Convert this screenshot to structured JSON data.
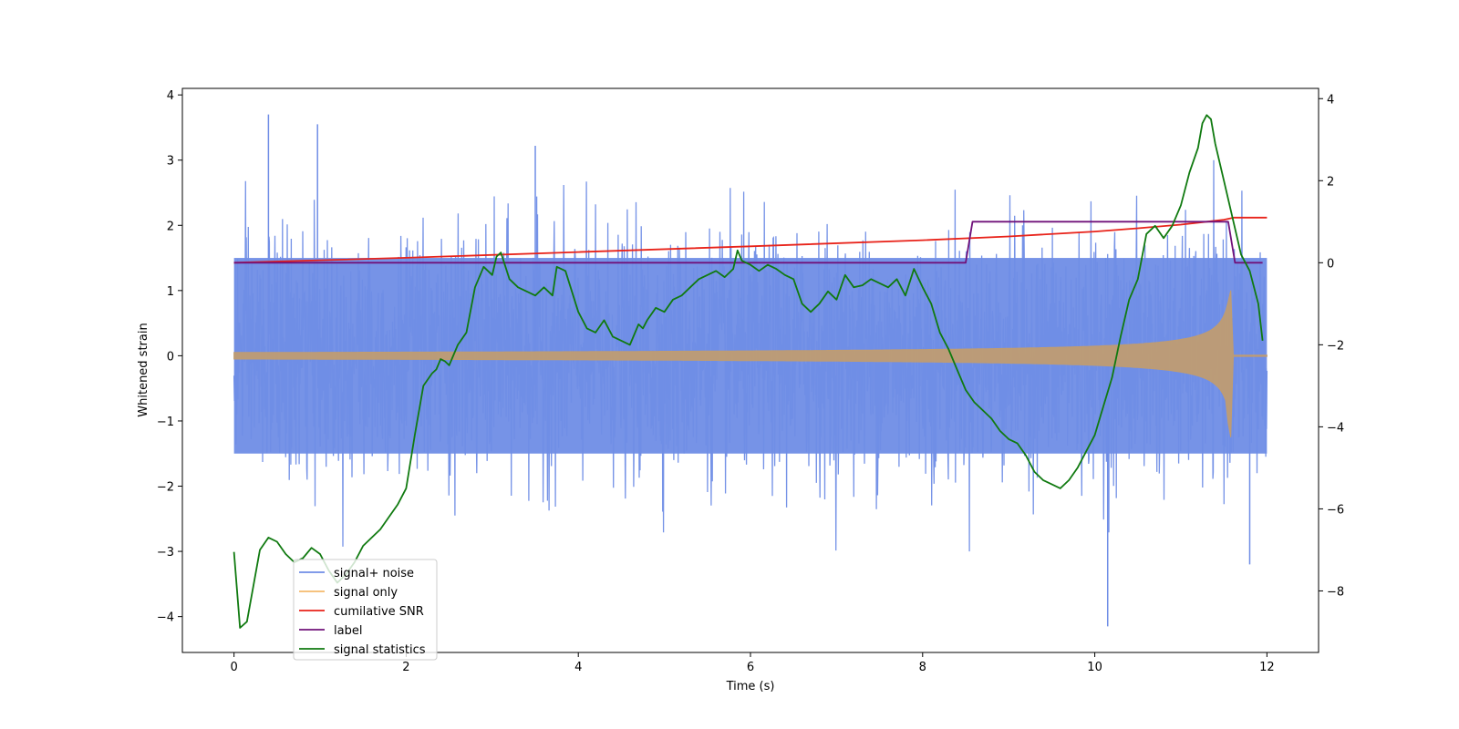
{
  "chart_data": {
    "type": "line",
    "title": "",
    "xlabel": "Time (s)",
    "ylabel": "Whitened strain",
    "xlim": [
      -0.6,
      12.6
    ],
    "ylim": [
      -4.55,
      4.1
    ],
    "y2lim": [
      -9.5,
      4.25
    ],
    "xticks": [
      0,
      2,
      4,
      6,
      8,
      10,
      12
    ],
    "xtick_labels": [
      "0",
      "2",
      "4",
      "6",
      "8",
      "10",
      "12"
    ],
    "yticks": [
      -4,
      -3,
      -2,
      -1,
      0,
      1,
      2,
      3,
      4
    ],
    "ytick_labels": [
      "−4",
      "−3",
      "−2",
      "−1",
      "0",
      "1",
      "2",
      "3",
      "4"
    ],
    "y2ticks": [
      -8,
      -6,
      -4,
      -2,
      0,
      2,
      4
    ],
    "y2tick_labels": [
      "−8",
      "−6",
      "−4",
      "−2",
      "0",
      "2",
      "4"
    ],
    "legend_position": "lower-left",
    "series": [
      {
        "name": "signal+ noise",
        "color": "#6f8de6",
        "axis": "left",
        "description": "noisy whitened strain, approx. uniform band between -2 and +2 with spikes",
        "x_range": [
          0,
          12
        ],
        "band": [
          -1.5,
          1.5
        ],
        "peaks": [
          {
            "x": 0.4,
            "y": 3.7
          },
          {
            "x": 0.97,
            "y": 3.55
          },
          {
            "x": 3.5,
            "y": 3.22
          },
          {
            "x": 10.15,
            "y": -4.15
          },
          {
            "x": 11.8,
            "y": -3.2
          }
        ]
      },
      {
        "name": "signal only",
        "color": "#f5b96b",
        "axis": "left",
        "description": "chirp with amplitude growing from 0.05 to 1.0, merger at 11.6 s",
        "x_range": [
          0,
          12
        ],
        "amplitude_start": 0.05,
        "amplitude_peak": 1.0,
        "merger_time": 11.6
      },
      {
        "name": "cumilative SNR",
        "color": "#e8231a",
        "axis": "right",
        "x": [
          0,
          2,
          4,
          6,
          8,
          9,
          10,
          10.5,
          11,
          11.3,
          11.5,
          11.62,
          12
        ],
        "y": [
          0,
          0.12,
          0.26,
          0.4,
          0.55,
          0.64,
          0.76,
          0.84,
          0.93,
          1.0,
          1.05,
          1.1,
          1.1
        ]
      },
      {
        "name": "label",
        "color": "#70127a",
        "axis": "right",
        "x": [
          0,
          8.5,
          8.58,
          11.55,
          11.63,
          11.95
        ],
        "y": [
          0,
          0,
          1,
          1,
          0,
          0
        ]
      },
      {
        "name": "signal statistics",
        "color": "#107a10",
        "axis": "right",
        "x": [
          0,
          0.07,
          0.15,
          0.3,
          0.4,
          0.5,
          0.6,
          0.7,
          0.8,
          0.9,
          1.0,
          1.1,
          1.2,
          1.3,
          1.4,
          1.5,
          1.6,
          1.7,
          1.8,
          1.9,
          2.0,
          2.1,
          2.2,
          2.3,
          2.35,
          2.4,
          2.45,
          2.5,
          2.6,
          2.7,
          2.8,
          2.9,
          3.0,
          3.05,
          3.1,
          3.2,
          3.3,
          3.4,
          3.5,
          3.6,
          3.7,
          3.75,
          3.85,
          4.0,
          4.1,
          4.2,
          4.3,
          4.4,
          4.5,
          4.6,
          4.7,
          4.75,
          4.8,
          4.9,
          5.0,
          5.1,
          5.2,
          5.3,
          5.4,
          5.5,
          5.6,
          5.7,
          5.8,
          5.85,
          5.9,
          6.0,
          6.1,
          6.2,
          6.3,
          6.4,
          6.5,
          6.6,
          6.7,
          6.8,
          6.9,
          7.0,
          7.1,
          7.2,
          7.3,
          7.4,
          7.5,
          7.6,
          7.7,
          7.8,
          7.9,
          8.0,
          8.1,
          8.2,
          8.3,
          8.4,
          8.5,
          8.6,
          8.7,
          8.8,
          8.9,
          9.0,
          9.1,
          9.2,
          9.3,
          9.4,
          9.5,
          9.6,
          9.7,
          9.8,
          9.9,
          10.0,
          10.1,
          10.2,
          10.3,
          10.4,
          10.5,
          10.6,
          10.7,
          10.8,
          10.9,
          11.0,
          11.1,
          11.2,
          11.25,
          11.3,
          11.35,
          11.4,
          11.5,
          11.6,
          11.7,
          11.8,
          11.9,
          11.95
        ],
        "y": [
          -7.05,
          -8.9,
          -8.75,
          -7.0,
          -6.7,
          -6.8,
          -7.1,
          -7.3,
          -7.2,
          -6.95,
          -7.1,
          -7.5,
          -7.8,
          -7.6,
          -7.3,
          -6.9,
          -6.7,
          -6.5,
          -6.2,
          -5.9,
          -5.5,
          -4.2,
          -3.0,
          -2.7,
          -2.6,
          -2.35,
          -2.4,
          -2.5,
          -2.0,
          -1.7,
          -0.6,
          -0.1,
          -0.3,
          0.15,
          0.25,
          -0.4,
          -0.6,
          -0.7,
          -0.8,
          -0.6,
          -0.8,
          -0.1,
          -0.2,
          -1.2,
          -1.6,
          -1.7,
          -1.4,
          -1.8,
          -1.9,
          -2.0,
          -1.5,
          -1.6,
          -1.4,
          -1.1,
          -1.2,
          -0.9,
          -0.8,
          -0.6,
          -0.4,
          -0.3,
          -0.2,
          -0.35,
          -0.15,
          0.3,
          0.05,
          -0.05,
          -0.2,
          -0.05,
          -0.15,
          -0.3,
          -0.4,
          -1.0,
          -1.2,
          -1.0,
          -0.7,
          -0.9,
          -0.3,
          -0.6,
          -0.55,
          -0.4,
          -0.5,
          -0.6,
          -0.4,
          -0.8,
          -0.15,
          -0.6,
          -1.0,
          -1.7,
          -2.1,
          -2.6,
          -3.1,
          -3.4,
          -3.6,
          -3.8,
          -4.1,
          -4.3,
          -4.4,
          -4.7,
          -5.1,
          -5.3,
          -5.4,
          -5.5,
          -5.3,
          -5.0,
          -4.6,
          -4.2,
          -3.5,
          -2.8,
          -1.8,
          -0.9,
          -0.4,
          0.7,
          0.9,
          0.6,
          0.9,
          1.4,
          2.2,
          2.8,
          3.4,
          3.6,
          3.5,
          2.9,
          2.0,
          1.1,
          0.2,
          -0.2,
          -1.0,
          -1.9
        ]
      }
    ]
  }
}
